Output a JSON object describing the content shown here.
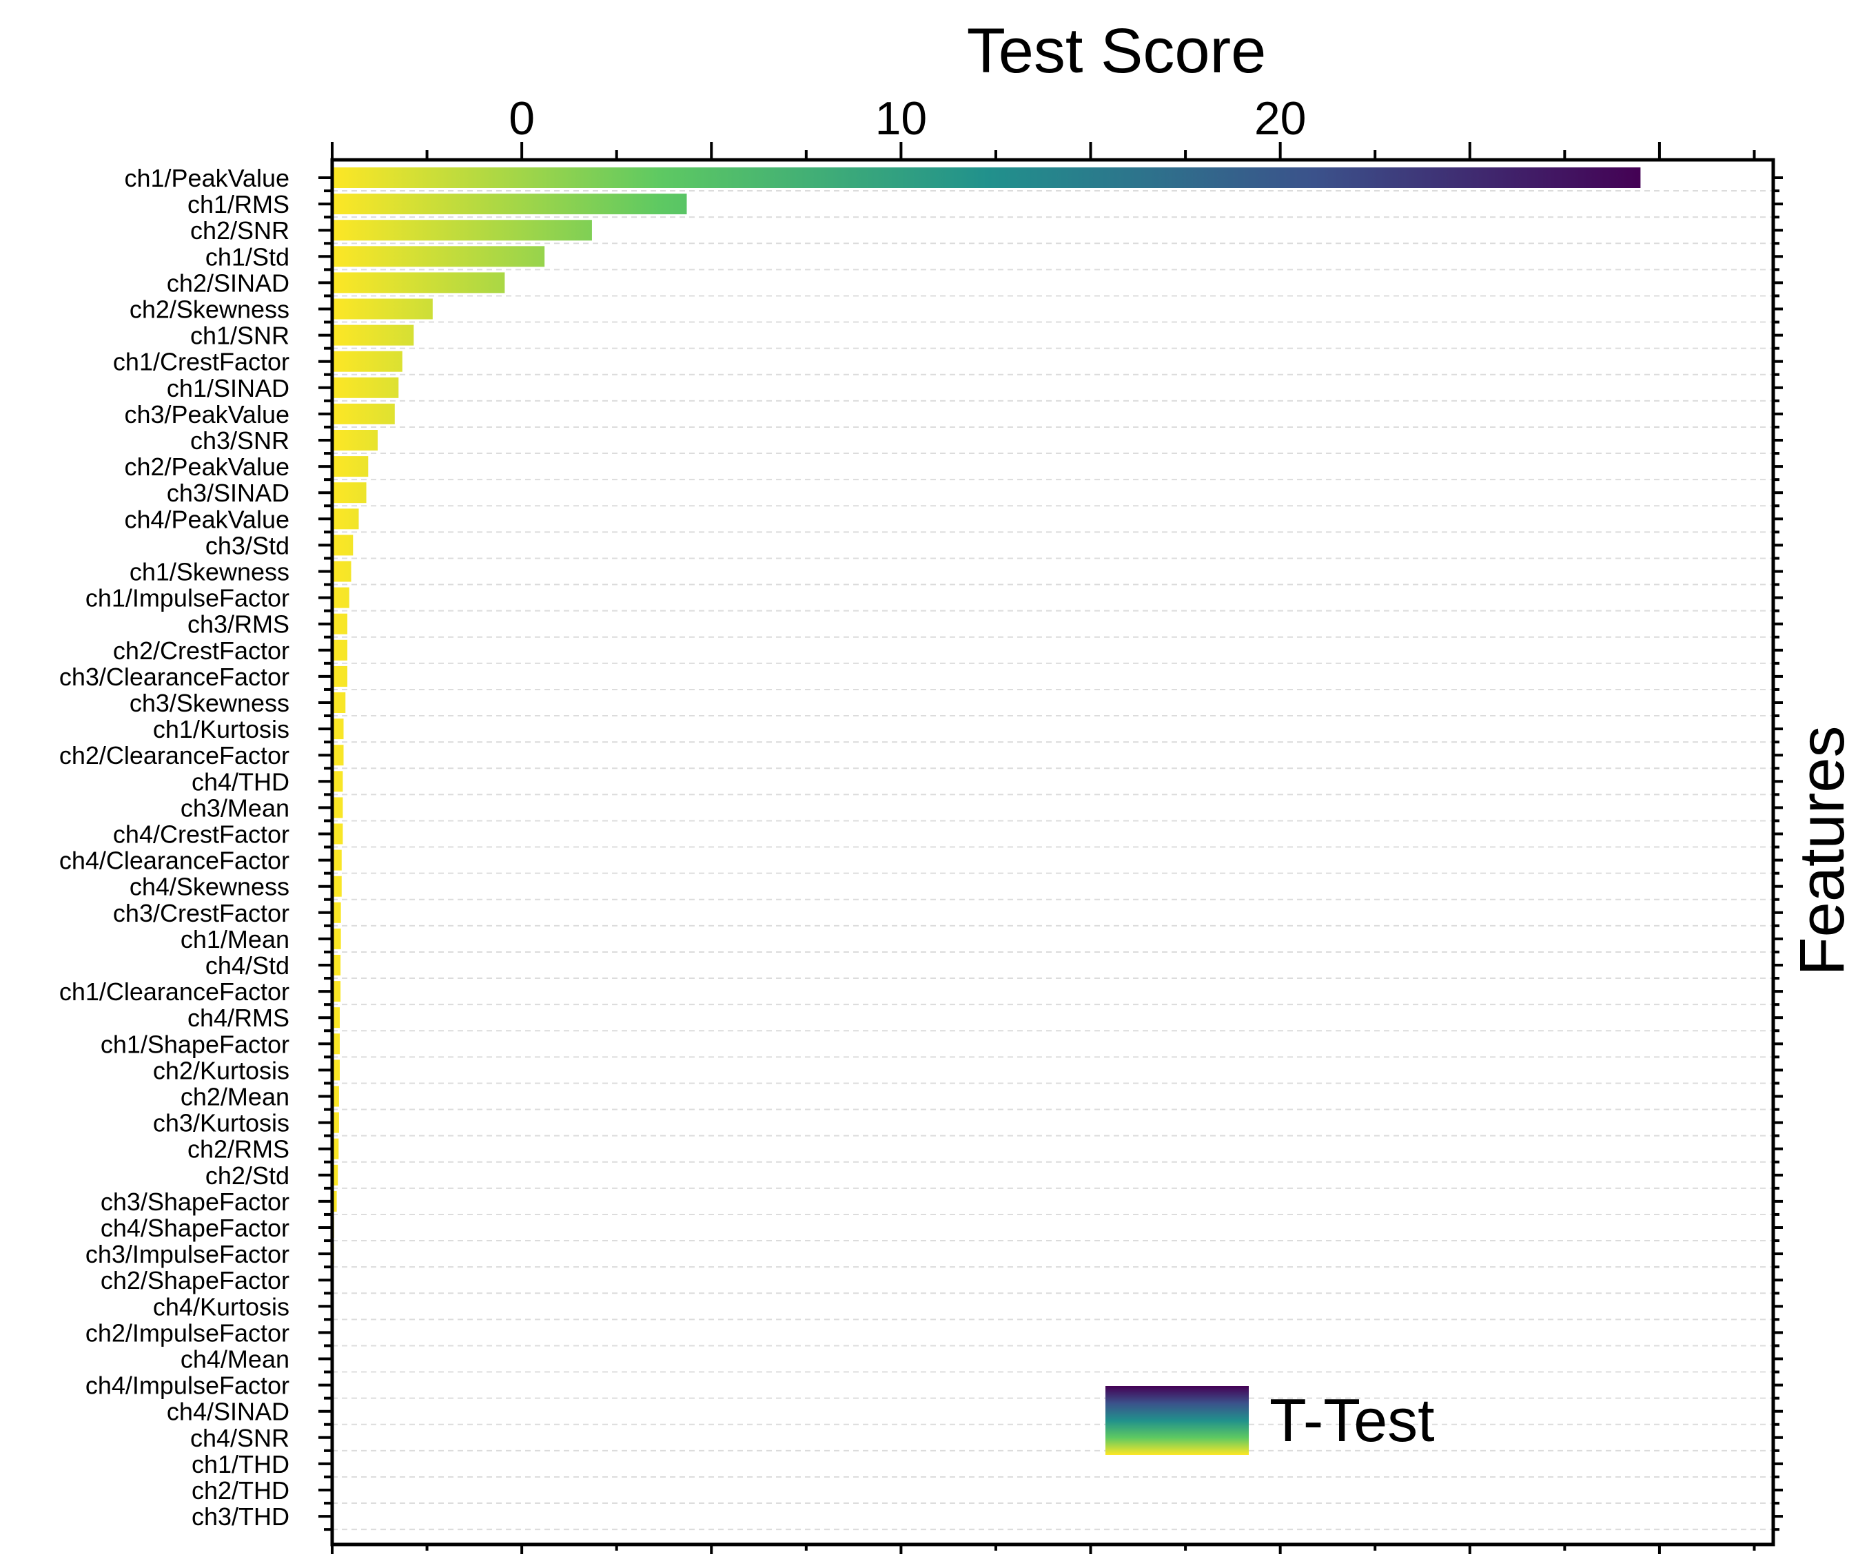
{
  "chart_data": {
    "type": "bar",
    "orientation": "horizontal",
    "title": "",
    "xlabel": "Test Score",
    "ylabel": "Features",
    "xlim": [
      -5,
      33
    ],
    "x_ticks": [
      0,
      10,
      20
    ],
    "grid": "horizontal dashed",
    "legend": {
      "placement": "bottom-right",
      "entries": [
        "T-Test"
      ]
    },
    "colormap": [
      "#fde725",
      "#5ec962",
      "#21918c",
      "#3b528b",
      "#440154"
    ],
    "series": [
      {
        "name": "T-Test",
        "categories": [
          "ch1/PeakValue",
          "ch1/RMS",
          "ch2/SNR",
          "ch1/Std",
          "ch2/SINAD",
          "ch2/Skewness",
          "ch1/SNR",
          "ch1/CrestFactor",
          "ch1/SINAD",
          "ch3/PeakValue",
          "ch3/SNR",
          "ch2/PeakValue",
          "ch3/SINAD",
          "ch4/PeakValue",
          "ch3/Std",
          "ch1/Skewness",
          "ch1/ImpulseFactor",
          "ch3/RMS",
          "ch2/CrestFactor",
          "ch3/ClearanceFactor",
          "ch3/Skewness",
          "ch1/Kurtosis",
          "ch2/ClearanceFactor",
          "ch4/THD",
          "ch3/Mean",
          "ch4/CrestFactor",
          "ch4/ClearanceFactor",
          "ch4/Skewness",
          "ch3/CrestFactor",
          "ch1/Mean",
          "ch4/Std",
          "ch1/ClearanceFactor",
          "ch4/RMS",
          "ch1/ShapeFactor",
          "ch2/Kurtosis",
          "ch2/Mean",
          "ch3/Kurtosis",
          "ch2/RMS",
          "ch2/Std",
          "ch3/ShapeFactor",
          "ch4/ShapeFactor",
          "ch3/ImpulseFactor",
          "ch2/ShapeFactor",
          "ch4/Kurtosis",
          "ch2/ImpulseFactor",
          "ch4/Mean",
          "ch4/ImpulseFactor",
          "ch4/SINAD",
          "ch4/SNR",
          "ch1/THD",
          "ch2/THD",
          "ch3/THD"
        ],
        "values": [
          29.5,
          4.35,
          1.85,
          0.6,
          -0.45,
          -2.35,
          -2.85,
          -3.15,
          -3.25,
          -3.35,
          -3.8,
          -4.05,
          -4.1,
          -4.3,
          -4.45,
          -4.5,
          -4.55,
          -4.6,
          -4.6,
          -4.6,
          -4.65,
          -4.7,
          -4.7,
          -4.72,
          -4.72,
          -4.72,
          -4.75,
          -4.75,
          -4.77,
          -4.77,
          -4.78,
          -4.78,
          -4.8,
          -4.8,
          -4.8,
          -4.82,
          -4.82,
          -4.83,
          -4.85,
          -4.88,
          -4.95,
          -4.95,
          -4.96,
          -4.97,
          -4.97,
          -4.98,
          -4.98,
          -4.99,
          -4.99,
          -5.0,
          -5.0,
          -5.0
        ]
      }
    ]
  }
}
